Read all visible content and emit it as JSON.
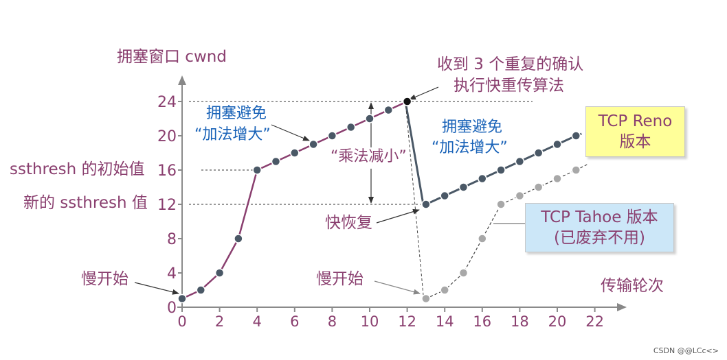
{
  "y_axis_label": "拥塞窗口 cwnd",
  "x_axis_label": "传输轮次",
  "colors": {
    "curve": "#8a3f6f",
    "reno_line": "#4a5866",
    "tahoe_line": "#444444",
    "text": "#8a3f6f",
    "blue_text": "#1a63b8",
    "reno_box": "#ffff99",
    "tahoe_box": "#cce7f8"
  },
  "annotations": {
    "triple_ack_line1": "收到 3 个重复的确认",
    "triple_ack_line2": "执行快重传算法",
    "ca_left_line1": "拥塞避免",
    "ca_left_line2": "“加法增大”",
    "ca_right_line1": "拥塞避免",
    "ca_right_line2": "“加法增大”",
    "mult_decrease": "“乘法减小”",
    "ssthresh_initial": "ssthresh 的初始值",
    "ssthresh_new": "新的 ssthresh 值",
    "fast_recovery": "快恢复",
    "slow_start_left": "慢开始",
    "slow_start_right": "慢开始",
    "reno_line1": "TCP Reno",
    "reno_line2": "版本",
    "tahoe_line1": "TCP Tahoe 版本",
    "tahoe_line2": "(已废弃不用)",
    "watermark": "CSDN @@LCc<>"
  },
  "chart_data": {
    "type": "line",
    "xlabel": "传输轮次",
    "ylabel": "拥塞窗口 cwnd",
    "x_ticks": [
      0,
      2,
      4,
      6,
      8,
      10,
      12,
      14,
      16,
      18,
      20,
      22
    ],
    "y_ticks": [
      0,
      4,
      8,
      12,
      16,
      20,
      24
    ],
    "series": [
      {
        "name": "",
        "x": [
          0,
          1,
          2,
          3,
          4,
          5,
          6,
          7,
          8,
          9,
          10,
          11,
          12
        ],
        "y": [
          1,
          2,
          4,
          8,
          16,
          17,
          18,
          19,
          20,
          21,
          22,
          23,
          24
        ]
      },
      {
        "name": "TCP Reno",
        "x": [
          13,
          14,
          15,
          16,
          17,
          18,
          19,
          20,
          21
        ],
        "y": [
          12,
          13,
          14,
          15,
          16,
          17,
          18,
          19,
          20
        ]
      },
      {
        "name": "TCP Tahoe",
        "x": [
          13,
          14,
          15,
          16,
          17,
          18,
          19,
          20,
          21
        ],
        "y": [
          1,
          2,
          4,
          8,
          12,
          13,
          14,
          15,
          16
        ]
      }
    ]
  }
}
